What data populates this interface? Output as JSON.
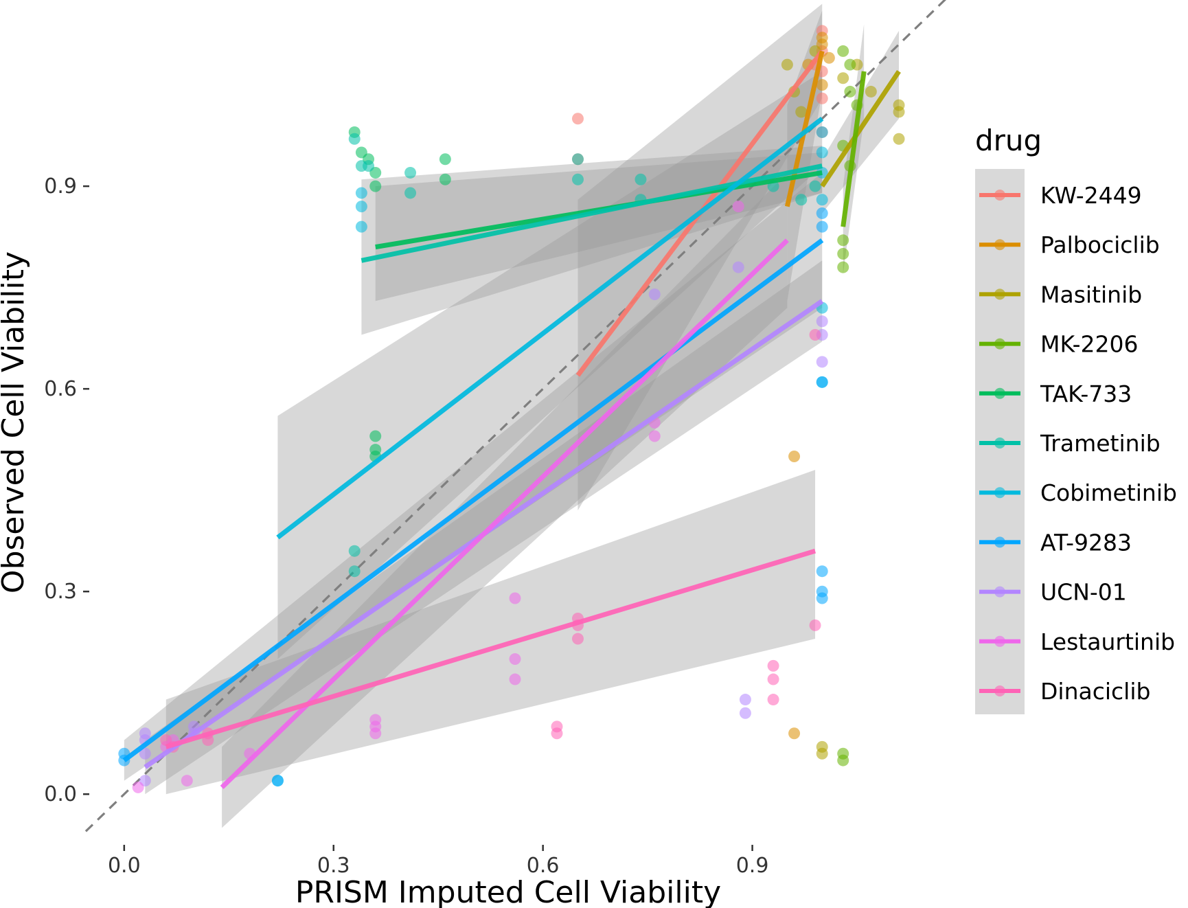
{
  "chart_data": {
    "type": "scatter",
    "xlabel": "PRISM Imputed Cell Viability",
    "ylabel": "Observed Cell Viability",
    "xlim": [
      -0.05,
      1.17
    ],
    "ylim": [
      -0.075,
      1.135
    ],
    "x_ticks": [
      "0.0",
      "0.3",
      "0.6",
      "0.9"
    ],
    "y_ticks": [
      "0.0",
      "0.3",
      "0.6",
      "0.9"
    ],
    "reference_line": {
      "slope": 1,
      "intercept": 0,
      "style": "dashed",
      "color": "#7f7f7f"
    },
    "grid": false,
    "legend": {
      "title": "drug",
      "position": "right"
    },
    "series": [
      {
        "name": "KW-2449",
        "color": "#F8766D",
        "points": [
          [
            0.65,
            1.0
          ],
          [
            0.65,
            0.94
          ],
          [
            1.0,
            1.13
          ],
          [
            1.0,
            1.1
          ],
          [
            1.0,
            1.07
          ],
          [
            1.0,
            1.03
          ],
          [
            1.0,
            0.98
          ],
          [
            0.99,
            1.08
          ]
        ],
        "fit": {
          "x1": 0.65,
          "y1": 0.62,
          "x2": 1.0,
          "y2": 1.1
        },
        "ci": {
          "x1": 0.65,
          "lo1": 0.42,
          "hi1": 0.88,
          "x2": 1.0,
          "lo2": 1.03,
          "hi2": 1.17
        }
      },
      {
        "name": "Palbociclib",
        "color": "#DB8E00",
        "points": [
          [
            0.96,
            0.5
          ],
          [
            0.96,
            0.09
          ],
          [
            0.98,
            1.08
          ],
          [
            1.0,
            1.12
          ],
          [
            1.0,
            1.11
          ],
          [
            1.0,
            1.05
          ],
          [
            1.01,
            1.09
          ]
        ],
        "fit": {
          "x1": 0.95,
          "y1": 0.87,
          "x2": 1.0,
          "y2": 1.1
        },
        "ci": {
          "x1": 0.95,
          "lo1": 0.73,
          "hi1": 1.02,
          "x2": 1.0,
          "lo2": 1.04,
          "hi2": 1.16
        }
      },
      {
        "name": "Masitinib",
        "color": "#AEA200",
        "points": [
          [
            0.95,
            1.08
          ],
          [
            0.96,
            1.04
          ],
          [
            0.97,
            1.01
          ],
          [
            0.99,
            1.1
          ],
          [
            1.0,
            0.07
          ],
          [
            1.0,
            0.06
          ],
          [
            1.03,
            1.06
          ],
          [
            1.05,
            1.08
          ],
          [
            1.07,
            1.04
          ],
          [
            1.11,
            1.02
          ],
          [
            1.11,
            1.01
          ],
          [
            1.11,
            0.97
          ]
        ],
        "fit": {
          "x1": 1.0,
          "y1": 0.9,
          "x2": 1.11,
          "y2": 1.07
        },
        "ci": {
          "x1": 1.0,
          "lo1": 0.86,
          "hi1": 0.94,
          "x2": 1.11,
          "lo2": 1.0,
          "hi2": 1.13
        }
      },
      {
        "name": "MK-2206",
        "color": "#64B200",
        "points": [
          [
            1.03,
            0.06
          ],
          [
            1.03,
            0.05
          ],
          [
            1.03,
            0.82
          ],
          [
            1.03,
            0.8
          ],
          [
            1.03,
            0.78
          ],
          [
            1.03,
            1.1
          ],
          [
            1.04,
            1.08
          ],
          [
            1.04,
            1.04
          ],
          [
            1.05,
            1.02
          ],
          [
            1.03,
            0.96
          ],
          [
            1.04,
            0.93
          ]
        ],
        "fit": {
          "x1": 1.03,
          "y1": 0.84,
          "x2": 1.06,
          "y2": 1.07
        },
        "ci": {
          "x1": 1.03,
          "lo1": 0.77,
          "hi1": 0.9,
          "x2": 1.06,
          "lo2": 1.0,
          "hi2": 1.14
        }
      },
      {
        "name": "TAK-733",
        "color": "#00BD5C",
        "points": [
          [
            0.33,
            0.98
          ],
          [
            0.34,
            0.95
          ],
          [
            0.35,
            0.94
          ],
          [
            0.36,
            0.92
          ],
          [
            0.36,
            0.9
          ],
          [
            0.36,
            0.53
          ],
          [
            0.36,
            0.51
          ],
          [
            0.36,
            0.5
          ],
          [
            0.46,
            0.94
          ],
          [
            0.46,
            0.91
          ]
        ],
        "fit": {
          "x1": 0.36,
          "y1": 0.81,
          "x2": 1.0,
          "y2": 0.92
        },
        "ci": {
          "x1": 0.36,
          "lo1": 0.73,
          "hi1": 0.9,
          "x2": 1.0,
          "lo2": 0.89,
          "hi2": 0.95
        }
      },
      {
        "name": "Trametinib",
        "color": "#00C1A7",
        "points": [
          [
            0.33,
            0.97
          ],
          [
            0.34,
            0.93
          ],
          [
            0.35,
            0.93
          ],
          [
            0.33,
            0.36
          ],
          [
            0.33,
            0.33
          ],
          [
            0.41,
            0.92
          ],
          [
            0.41,
            0.89
          ],
          [
            0.65,
            0.94
          ],
          [
            0.65,
            0.91
          ],
          [
            0.74,
            0.91
          ],
          [
            0.74,
            0.88
          ],
          [
            0.93,
            0.9
          ],
          [
            0.97,
            0.88
          ],
          [
            0.99,
            0.9
          ]
        ],
        "fit": {
          "x1": 0.34,
          "y1": 0.79,
          "x2": 1.0,
          "y2": 0.93
        },
        "ci": {
          "x1": 0.34,
          "lo1": 0.68,
          "hi1": 0.91,
          "x2": 1.0,
          "lo2": 0.89,
          "hi2": 0.96
        }
      },
      {
        "name": "Cobimetinib",
        "color": "#00BADE",
        "points": [
          [
            0.22,
            0.02
          ],
          [
            0.34,
            0.89
          ],
          [
            0.34,
            0.87
          ],
          [
            0.34,
            0.84
          ],
          [
            1.0,
            0.72
          ],
          [
            1.0,
            0.61
          ],
          [
            1.0,
            0.98
          ],
          [
            1.0,
            0.95
          ],
          [
            1.0,
            0.92
          ],
          [
            1.0,
            0.88
          ]
        ],
        "fit": {
          "x1": 0.22,
          "y1": 0.38,
          "x2": 1.0,
          "y2": 1.0
        },
        "ci": {
          "x1": 0.22,
          "lo1": 0.2,
          "hi1": 0.56,
          "x2": 1.0,
          "lo2": 0.93,
          "hi2": 1.07
        }
      },
      {
        "name": "AT-9283",
        "color": "#00A6FF",
        "points": [
          [
            0.0,
            0.06
          ],
          [
            0.0,
            0.05
          ],
          [
            0.22,
            0.02
          ],
          [
            1.0,
            0.33
          ],
          [
            1.0,
            0.3
          ],
          [
            1.0,
            0.29
          ],
          [
            1.0,
            0.61
          ],
          [
            1.0,
            0.86
          ],
          [
            1.0,
            0.84
          ]
        ],
        "fit": {
          "x1": 0.0,
          "y1": 0.05,
          "x2": 1.0,
          "y2": 0.82
        },
        "ci": {
          "x1": 0.0,
          "lo1": 0.02,
          "hi1": 0.08,
          "x2": 1.0,
          "lo2": 0.72,
          "hi2": 0.92
        }
      },
      {
        "name": "UCN-01",
        "color": "#B385FF",
        "points": [
          [
            0.03,
            0.09
          ],
          [
            0.03,
            0.08
          ],
          [
            0.03,
            0.06
          ],
          [
            0.03,
            0.02
          ],
          [
            0.1,
            0.1
          ],
          [
            0.1,
            0.09
          ],
          [
            0.76,
            0.74
          ],
          [
            0.89,
            0.14
          ],
          [
            0.89,
            0.12
          ],
          [
            0.88,
            0.78
          ],
          [
            1.0,
            0.7
          ],
          [
            1.0,
            0.68
          ],
          [
            1.0,
            0.64
          ]
        ],
        "fit": {
          "x1": 0.03,
          "y1": 0.04,
          "x2": 1.0,
          "y2": 0.73
        },
        "ci": {
          "x1": 0.03,
          "lo1": 0.0,
          "hi1": 0.08,
          "x2": 1.0,
          "lo2": 0.67,
          "hi2": 0.79
        }
      },
      {
        "name": "Lestaurtinib",
        "color": "#EF67EB",
        "points": [
          [
            0.02,
            0.01
          ],
          [
            0.09,
            0.02
          ],
          [
            0.07,
            0.08
          ],
          [
            0.06,
            0.07
          ],
          [
            0.18,
            0.06
          ],
          [
            0.36,
            0.11
          ],
          [
            0.36,
            0.1
          ],
          [
            0.36,
            0.09
          ],
          [
            0.56,
            0.29
          ],
          [
            0.56,
            0.2
          ],
          [
            0.56,
            0.17
          ],
          [
            0.76,
            0.55
          ],
          [
            0.76,
            0.53
          ],
          [
            0.88,
            0.87
          ]
        ],
        "fit": {
          "x1": 0.14,
          "y1": 0.01,
          "x2": 0.95,
          "y2": 0.82
        },
        "ci": {
          "x1": 0.14,
          "lo1": -0.05,
          "hi1": 0.07,
          "x2": 0.95,
          "lo2": 0.72,
          "hi2": 0.92
        }
      },
      {
        "name": "Dinaciclib",
        "color": "#FF63B6",
        "points": [
          [
            0.06,
            0.08
          ],
          [
            0.07,
            0.07
          ],
          [
            0.12,
            0.08
          ],
          [
            0.12,
            0.09
          ],
          [
            0.62,
            0.1
          ],
          [
            0.62,
            0.09
          ],
          [
            0.65,
            0.26
          ],
          [
            0.65,
            0.25
          ],
          [
            0.65,
            0.23
          ],
          [
            0.93,
            0.19
          ],
          [
            0.93,
            0.17
          ],
          [
            0.93,
            0.14
          ],
          [
            0.99,
            0.25
          ],
          [
            0.99,
            0.68
          ]
        ],
        "fit": {
          "x1": 0.06,
          "y1": 0.07,
          "x2": 0.99,
          "y2": 0.36
        },
        "ci": {
          "x1": 0.06,
          "lo1": 0.0,
          "hi1": 0.14,
          "x2": 0.99,
          "lo2": 0.23,
          "hi2": 0.48
        }
      }
    ]
  }
}
